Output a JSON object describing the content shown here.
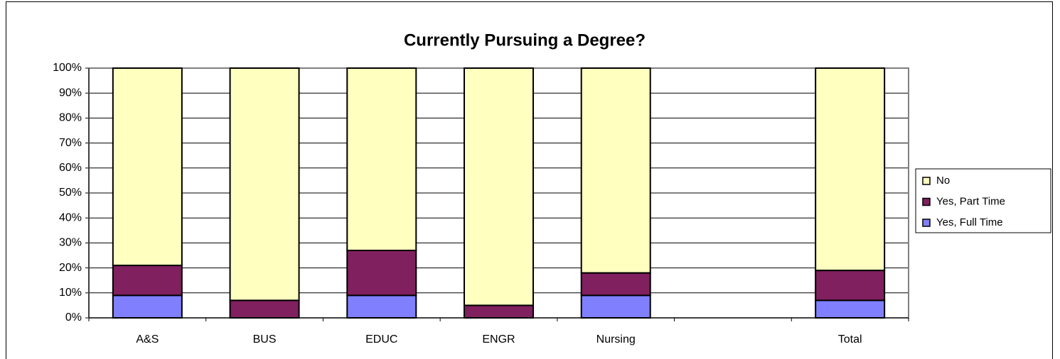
{
  "chart_data": {
    "type": "bar",
    "stacked": true,
    "title": "Currently Pursuing a Degree?",
    "categories": [
      "A&S",
      "BUS",
      "EDUC",
      "ENGR",
      "Nursing",
      null,
      "Total"
    ],
    "series": [
      {
        "name": "Yes, Full Time",
        "color": "#8080ff",
        "values": [
          9,
          0,
          9,
          0,
          9,
          null,
          7
        ]
      },
      {
        "name": "Yes, Part Time",
        "color": "#80205f",
        "values": [
          12,
          7,
          18,
          5,
          9,
          null,
          12
        ]
      },
      {
        "name": "No",
        "color": "#ffffc0",
        "values": [
          79,
          93,
          73,
          95,
          82,
          null,
          81
        ]
      }
    ],
    "ylim": [
      0,
      100
    ],
    "yticks": [
      {
        "value": 0,
        "label": "0%"
      },
      {
        "value": 10,
        "label": "10%"
      },
      {
        "value": 20,
        "label": "20%"
      },
      {
        "value": 30,
        "label": "30%"
      },
      {
        "value": 40,
        "label": "40%"
      },
      {
        "value": 50,
        "label": "50%"
      },
      {
        "value": 60,
        "label": "60%"
      },
      {
        "value": 70,
        "label": "70%"
      },
      {
        "value": 80,
        "label": "80%"
      },
      {
        "value": 90,
        "label": "90%"
      },
      {
        "value": 100,
        "label": "100%"
      }
    ],
    "grid": true,
    "legend": "right"
  }
}
